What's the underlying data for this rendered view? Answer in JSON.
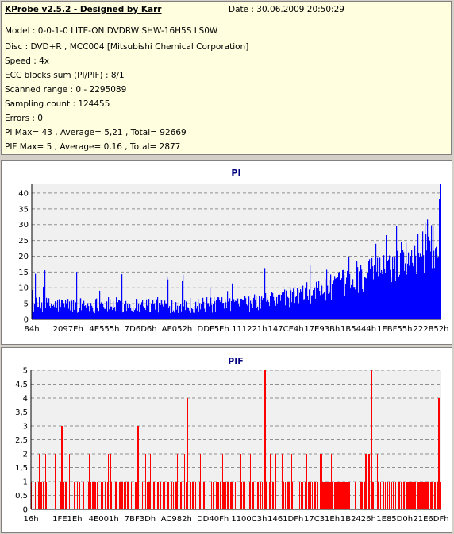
{
  "info": {
    "app_title": "KProbe v2.5.2 - Designed by Karr",
    "date": "Date : 30.06.2009 20:50:29",
    "lines": [
      "Model : 0-0-1-0 LITE-ON DVDRW SHW-16H5S  LS0W",
      "Disc : DVD+R , MCC004 [Mitsubishi Chemical Corporation]",
      "Speed : 4x",
      "ECC blocks sum (PI/PIF) : 8/1",
      "Scanned range : 0 - 2295089",
      "Sampling count : 124455",
      "Errors : 0",
      "PI Max= 43 , Average= 5,21 , Total= 92669",
      "PIF Max= 5 , Average= 0,16 , Total= 2877"
    ]
  },
  "chart_data": [
    {
      "type": "bar",
      "title": "PI",
      "ylim": [
        0,
        43
      ],
      "yticks": [
        "0",
        "5",
        "10",
        "15",
        "20",
        "25",
        "30",
        "35",
        "40"
      ],
      "xticks": [
        "84h",
        "2097Eh",
        "4E555h",
        "7D6D6h",
        "AE052h",
        "DDF5Eh",
        "111221h",
        "147CE4h",
        "17E93Bh",
        "1B5444h",
        "1EBF55h",
        "222B52h"
      ],
      "grid": true,
      "color": "#0000ff",
      "x_range": [
        132,
        2295089
      ],
      "max": 43,
      "average": 5.21
    },
    {
      "type": "bar",
      "title": "PIF",
      "ylim": [
        0,
        5
      ],
      "yticks": [
        "0",
        "0,5",
        "1",
        "1,5",
        "2",
        "2,5",
        "3",
        "3,5",
        "4",
        "4,5",
        "5"
      ],
      "xticks": [
        "16h",
        "1FE1Eh",
        "4E001h",
        "7BF3Dh",
        "AC982h",
        "DD40Fh",
        "1100C3h",
        "1461DFh",
        "17C31Eh",
        "1B2426h",
        "1E85D0h",
        "21E6DFh"
      ],
      "grid": true,
      "color": "#ff0000",
      "x_range": [
        22,
        2295089
      ],
      "max": 5,
      "average": 0.16
    }
  ]
}
